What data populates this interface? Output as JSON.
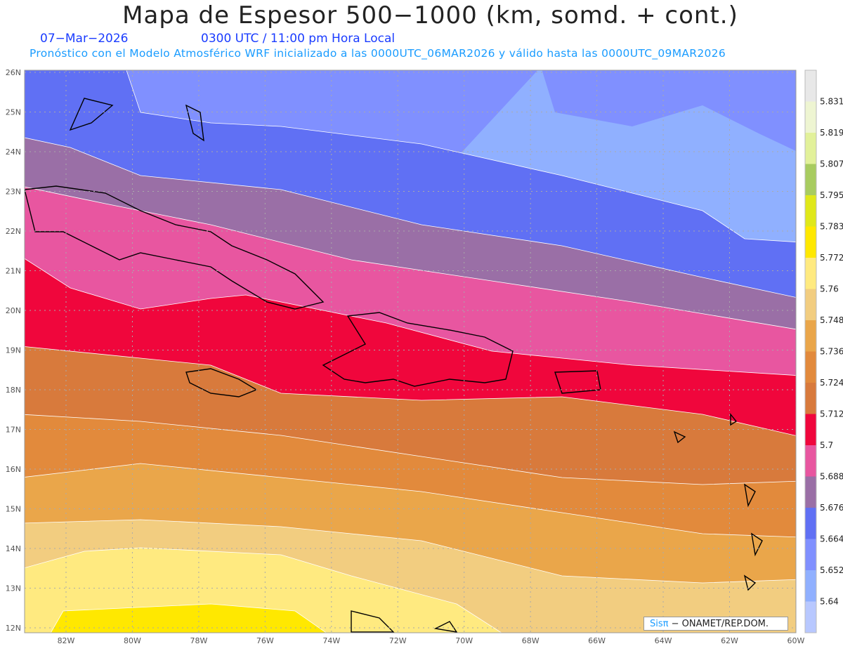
{
  "title": "Mapa de Espesor 500−1000 (km, somd. + cont.)",
  "date": "07−Mar−2026",
  "time": "0300 UTC / 11:00 pm Hora Local",
  "subtitle": "Pronóstico con el Modelo Atmosférico WRF inicializado a las 0000UTC_06MAR2026 y válido hasta las  0000UTC_09MAR2026",
  "lon_labels": [
    "82W",
    "80W",
    "78W",
    "76W",
    "74W",
    "72W",
    "70W",
    "68W",
    "66W",
    "64W",
    "62W",
    "60W"
  ],
  "lat_labels": [
    "26N",
    "25N",
    "24N",
    "23N",
    "22N",
    "21N",
    "20N",
    "19N",
    "18N",
    "17N",
    "16N",
    "15N",
    "14N",
    "13N",
    "12N"
  ],
  "colorbar": {
    "labels": [
      "5.831",
      "5.819",
      "5.807",
      "5.795",
      "5.783",
      "5.772",
      "5.76",
      "5.748",
      "5.736",
      "5.724",
      "5.712",
      "5.7",
      "5.688",
      "5.676",
      "5.664",
      "5.652",
      "5.64"
    ],
    "colors": [
      "#e8e8e8",
      "#eef5d2",
      "#e2f19a",
      "#a8cc60",
      "#e0e81a",
      "#ffe800",
      "#ffea80",
      "#f2cd80",
      "#eaa64a",
      "#e28a3c",
      "#d87a3c",
      "#f0063c",
      "#e856a0",
      "#9a6fa6",
      "#6070f4",
      "#8090ff",
      "#90b0ff",
      "#b8c8ff"
    ]
  },
  "logo": {
    "brand": "Sisπ",
    "text": "− ONAMET/REP.DOM."
  }
}
